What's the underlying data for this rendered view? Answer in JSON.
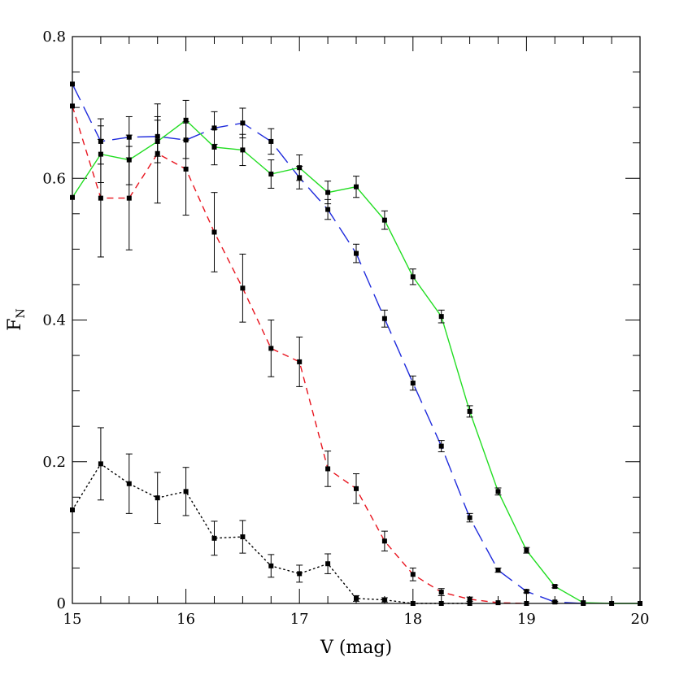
{
  "chart_data": {
    "type": "line",
    "title": "",
    "xlabel": "V (mag)",
    "ylabel": {
      "main": "F",
      "sub": "N"
    },
    "xlim": [
      15,
      20
    ],
    "ylim": [
      0,
      0.8
    ],
    "x_ticks": [
      {
        "value": 15,
        "label": "15"
      },
      {
        "value": 16,
        "label": "16"
      },
      {
        "value": 17,
        "label": "17"
      },
      {
        "value": 18,
        "label": "18"
      },
      {
        "value": 19,
        "label": "19"
      },
      {
        "value": 20,
        "label": "20"
      }
    ],
    "y_ticks": [
      {
        "value": 0,
        "label": "0"
      },
      {
        "value": 0.2,
        "label": "0.2"
      },
      {
        "value": 0.4,
        "label": "0.4"
      },
      {
        "value": 0.6,
        "label": "0.6"
      },
      {
        "value": 0.8,
        "label": "0.8"
      }
    ],
    "x_minor_step": 0.25,
    "y_minor_step": 0.05,
    "grid": false,
    "legend": "none",
    "series": [
      {
        "color": "#000000",
        "dash": "dotted",
        "x": [
          15,
          15.25,
          15.5,
          15.75,
          16,
          16.25,
          16.5,
          16.75,
          17,
          17.25,
          17.5,
          17.75,
          18,
          18.25,
          18.5
        ],
        "y": [
          0.132,
          0.197,
          0.169,
          0.149,
          0.158,
          0.092,
          0.094,
          0.053,
          0.042,
          0.056,
          0.007,
          0.005,
          0.0,
          0.0,
          0.0
        ],
        "err": [
          0,
          0.051,
          0.042,
          0.036,
          0.034,
          0.024,
          0.023,
          0.016,
          0.012,
          0.014,
          0.004,
          0.003,
          0,
          0,
          0
        ]
      },
      {
        "color": "#e8141e",
        "dash": "short-dash",
        "x": [
          15,
          15.25,
          15.5,
          15.75,
          16,
          16.25,
          16.5,
          16.75,
          17,
          17.25,
          17.5,
          17.75,
          18,
          18.25,
          18.5,
          18.75,
          19
        ],
        "y": [
          0.702,
          0.572,
          0.572,
          0.635,
          0.613,
          0.524,
          0.445,
          0.36,
          0.341,
          0.19,
          0.162,
          0.088,
          0.041,
          0.016,
          0.006,
          0.001,
          0.0
        ],
        "err": [
          0,
          0.083,
          0.073,
          0.07,
          0.065,
          0.056,
          0.048,
          0.04,
          0.035,
          0.025,
          0.021,
          0.014,
          0.009,
          0.005,
          0.003,
          0,
          0
        ]
      },
      {
        "color": "#1e2adc",
        "dash": "long-dash",
        "x": [
          15,
          15.25,
          15.5,
          15.75,
          16,
          16.25,
          16.5,
          16.75,
          17,
          17.25,
          17.5,
          17.75,
          18,
          18.25,
          18.5,
          18.75,
          19,
          19.25,
          19.5
        ],
        "y": [
          0.733,
          0.652,
          0.658,
          0.659,
          0.654,
          0.671,
          0.678,
          0.652,
          0.601,
          0.556,
          0.494,
          0.402,
          0.311,
          0.222,
          0.121,
          0.047,
          0.017,
          0.002,
          0.0
        ],
        "err": [
          0,
          0.032,
          0.029,
          0.028,
          0.026,
          0.023,
          0.021,
          0.018,
          0.016,
          0.014,
          0.013,
          0.012,
          0.01,
          0.008,
          0.006,
          0.003,
          0.002,
          0.001,
          0
        ]
      },
      {
        "color": "#22dd22",
        "dash": "solid",
        "x": [
          15,
          15.25,
          15.5,
          15.75,
          16,
          16.25,
          16.5,
          16.75,
          17,
          17.25,
          17.5,
          17.75,
          18,
          18.25,
          18.5,
          18.75,
          19,
          19.25,
          19.5,
          19.75,
          20
        ],
        "y": [
          0.573,
          0.634,
          0.626,
          0.652,
          0.682,
          0.644,
          0.64,
          0.606,
          0.615,
          0.58,
          0.588,
          0.541,
          0.461,
          0.405,
          0.271,
          0.158,
          0.075,
          0.024,
          0.001,
          0.0,
          0.0
        ],
        "err": [
          0,
          0.04,
          0.035,
          0.03,
          0.028,
          0.025,
          0.022,
          0.02,
          0.018,
          0.016,
          0.015,
          0.013,
          0.011,
          0.009,
          0.008,
          0.005,
          0.004,
          0.002,
          0,
          0,
          0
        ]
      }
    ]
  }
}
